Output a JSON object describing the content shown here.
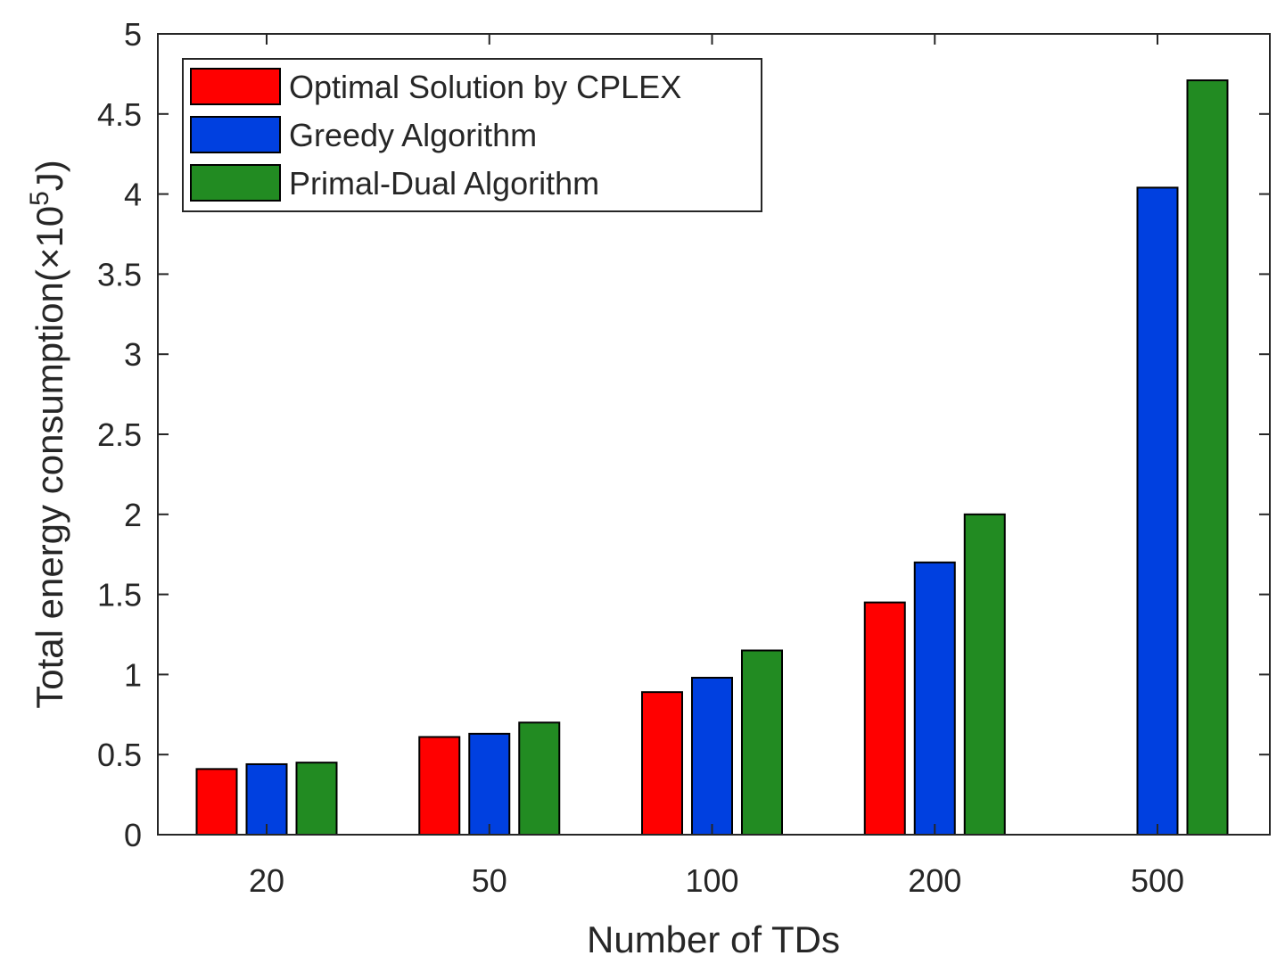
{
  "chart_data": {
    "type": "bar",
    "xlabel": "Number of TDs",
    "ylabel": {
      "prefix": "Total energy consumption(",
      "times": "×",
      "base": "10",
      "exponent": "5",
      "unit": "J)"
    },
    "categories": [
      "20",
      "50",
      "100",
      "200",
      "500"
    ],
    "ylim": [
      0,
      5
    ],
    "yticks": [
      "0",
      "0.5",
      "1",
      "1.5",
      "2",
      "2.5",
      "3",
      "3.5",
      "4",
      "4.5",
      "5"
    ],
    "grid": false,
    "legend_position": "top-left",
    "series": [
      {
        "name": "Optimal Solution by CPLEX",
        "color": "#ff0000",
        "values": [
          0.41,
          0.61,
          0.89,
          1.45,
          null
        ]
      },
      {
        "name": "Greedy Algorithm",
        "color": "#0040e0",
        "values": [
          0.44,
          0.63,
          0.98,
          1.7,
          4.04
        ]
      },
      {
        "name": "Primal-Dual Algorithm",
        "color": "#228b22",
        "values": [
          0.45,
          0.7,
          1.15,
          2.0,
          4.71
        ]
      }
    ]
  }
}
